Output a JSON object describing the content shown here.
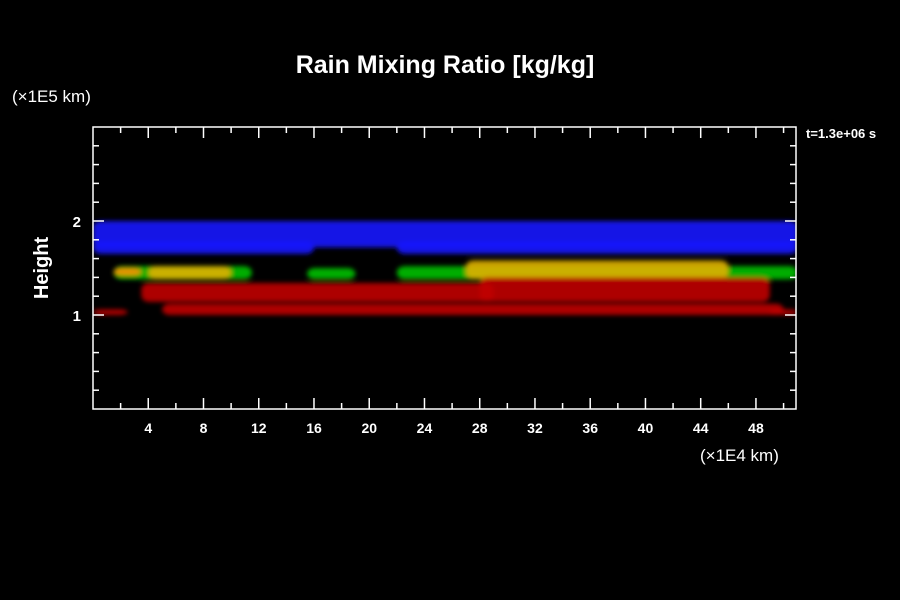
{
  "chart_data": {
    "type": "heatmap",
    "title": "Rain Mixing Ratio [kg/kg]",
    "xlabel": "(×1E4 km)",
    "ylabel": "Height",
    "yunit_label": "(×1E5 km)",
    "time_label": "t=1.3e+06 s",
    "xlim": [
      0,
      50.9
    ],
    "ylim": [
      0,
      3.0
    ],
    "x_major_ticks": [
      4,
      8,
      12,
      16,
      20,
      24,
      28,
      32,
      36,
      40,
      44,
      48
    ],
    "x_tick_labels": [
      "4",
      "8",
      "12",
      "16",
      "20",
      "24",
      "28",
      "32",
      "36",
      "40",
      "44",
      "48"
    ],
    "x_minor_step": 2,
    "y_major_ticks": [
      1,
      2
    ],
    "y_tick_labels": [
      "1",
      "2"
    ],
    "y_minor_step": 0.2,
    "colors": {
      "blue": "#1a1aff",
      "green": "#00c000",
      "yellow": "#e0b000",
      "orange": "#ff9000",
      "red": "#c00000"
    },
    "regions": [
      {
        "color": "blue",
        "x": [
          0,
          51
        ],
        "y": [
          1.72,
          2.0
        ]
      },
      {
        "color": "blue",
        "x": [
          0,
          16
        ],
        "y": [
          1.65,
          1.78
        ]
      },
      {
        "color": "blue",
        "x": [
          22,
          51
        ],
        "y": [
          1.65,
          1.78
        ]
      },
      {
        "color": "green",
        "x": [
          1.5,
          11.5
        ],
        "y": [
          1.38,
          1.52
        ]
      },
      {
        "color": "green",
        "x": [
          15.5,
          19
        ],
        "y": [
          1.38,
          1.5
        ]
      },
      {
        "color": "green",
        "x": [
          22,
          51
        ],
        "y": [
          1.38,
          1.52
        ]
      },
      {
        "color": "orange",
        "x": [
          1.5,
          3.5
        ],
        "y": [
          1.42,
          1.5
        ]
      },
      {
        "color": "yellow",
        "x": [
          4,
          10
        ],
        "y": [
          1.38,
          1.52
        ]
      },
      {
        "color": "yellow",
        "x": [
          27,
          46
        ],
        "y": [
          1.38,
          1.58
        ]
      },
      {
        "color": "red",
        "x": [
          3.5,
          29
        ],
        "y": [
          1.14,
          1.34
        ]
      },
      {
        "color": "red",
        "x": [
          28,
          49
        ],
        "y": [
          1.14,
          1.4
        ]
      },
      {
        "color": "red",
        "x": [
          5,
          50
        ],
        "y": [
          1.0,
          1.12
        ]
      },
      {
        "color": "red",
        "x": [
          0,
          2.5
        ],
        "y": [
          1.0,
          1.06
        ]
      },
      {
        "color": "red",
        "x": [
          49,
          51
        ],
        "y": [
          1.0,
          1.06
        ]
      }
    ]
  }
}
